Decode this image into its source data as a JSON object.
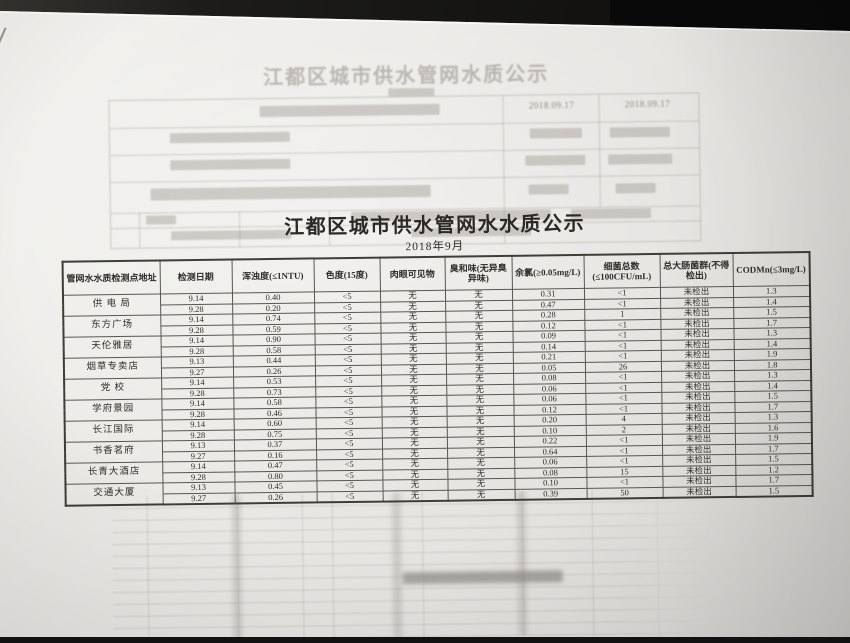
{
  "document": {
    "title": "江都区城市供水管网水水质公示",
    "subtitle": "2018年9月"
  },
  "ghost": {
    "title": "江都区城市供水管网水质公示",
    "dates": [
      "2018.09.17",
      "2018.09.17"
    ]
  },
  "table": {
    "headers": [
      "管网水水质检测点地址",
      "检测日期",
      "浑浊度(≤1NTU)",
      "色度(15度)",
      "肉眼可见物",
      "臭和味(无异臭异味)",
      "余氯(≥0.05mg/L)",
      "细菌总数(≤100CFU/mL)",
      "总大肠菌群(不得检出)",
      "CODMn(≤3mg/L)"
    ],
    "rows": [
      {
        "location": "供 电 局",
        "entries": [
          [
            "9.14",
            "0.40",
            "<5",
            "无",
            "无",
            "0.31",
            "<1",
            "未检出",
            "1.3"
          ],
          [
            "9.28",
            "0.20",
            "<5",
            "无",
            "无",
            "0.47",
            "<1",
            "未检出",
            "1.4"
          ]
        ]
      },
      {
        "location": "东方广场",
        "entries": [
          [
            "9.14",
            "0.74",
            "<5",
            "无",
            "无",
            "0.28",
            "1",
            "未检出",
            "1.5"
          ],
          [
            "9.28",
            "0.59",
            "<5",
            "无",
            "无",
            "0.12",
            "<1",
            "未检出",
            "1.7"
          ]
        ]
      },
      {
        "location": "天伦雅居",
        "entries": [
          [
            "9.14",
            "0.90",
            "<5",
            "无",
            "无",
            "0.09",
            "<1",
            "未检出",
            "1.3"
          ],
          [
            "9.28",
            "0.58",
            "<5",
            "无",
            "无",
            "0.14",
            "<1",
            "未检出",
            "1.4"
          ]
        ]
      },
      {
        "location": "烟草专卖店",
        "entries": [
          [
            "9.13",
            "0.44",
            "<5",
            "无",
            "无",
            "0.21",
            "<1",
            "未检出",
            "1.9"
          ],
          [
            "9.27",
            "0.26",
            "<5",
            "无",
            "无",
            "0.05",
            "26",
            "未检出",
            "1.8"
          ]
        ]
      },
      {
        "location": "党 校",
        "entries": [
          [
            "9.14",
            "0.53",
            "<5",
            "无",
            "无",
            "0.08",
            "<1",
            "未检出",
            "1.3"
          ],
          [
            "9.28",
            "0.73",
            "<5",
            "无",
            "无",
            "0.06",
            "<1",
            "未检出",
            "1.4"
          ]
        ]
      },
      {
        "location": "学府景园",
        "entries": [
          [
            "9.14",
            "0.58",
            "<5",
            "无",
            "无",
            "0.06",
            "<1",
            "未检出",
            "1.5"
          ],
          [
            "9.28",
            "0.46",
            "<5",
            "无",
            "无",
            "0.12",
            "<1",
            "未检出",
            "1.7"
          ]
        ]
      },
      {
        "location": "长江国际",
        "entries": [
          [
            "9.14",
            "0.60",
            "<5",
            "无",
            "无",
            "0.20",
            "4",
            "未检出",
            "1.3"
          ],
          [
            "9.28",
            "0.75",
            "<5",
            "无",
            "无",
            "0.10",
            "2",
            "未检出",
            "1.6"
          ]
        ]
      },
      {
        "location": "书香茗府",
        "entries": [
          [
            "9.13",
            "0.37",
            "<5",
            "无",
            "无",
            "0.22",
            "<1",
            "未检出",
            "1.9"
          ],
          [
            "9.27",
            "0.16",
            "<5",
            "无",
            "无",
            "0.64",
            "<1",
            "未检出",
            "1.7"
          ]
        ]
      },
      {
        "location": "长青大酒店",
        "entries": [
          [
            "9.14",
            "0.47",
            "<5",
            "无",
            "无",
            "0.06",
            "<1",
            "未检出",
            "1.5"
          ],
          [
            "9.28",
            "0.80",
            "<5",
            "无",
            "无",
            "0.08",
            "15",
            "未检出",
            "1.2"
          ]
        ]
      },
      {
        "location": "交通大厦",
        "entries": [
          [
            "9.13",
            "0.45",
            "<5",
            "无",
            "无",
            "0.10",
            "<1",
            "未检出",
            "1.7"
          ],
          [
            "9.27",
            "0.26",
            "<5",
            "无",
            "无",
            "0.39",
            "50",
            "未检出",
            "1.5"
          ]
        ]
      }
    ]
  },
  "colors": {
    "paper": "#e9e7e4",
    "ink": "#312e29",
    "desk": "#151412"
  }
}
